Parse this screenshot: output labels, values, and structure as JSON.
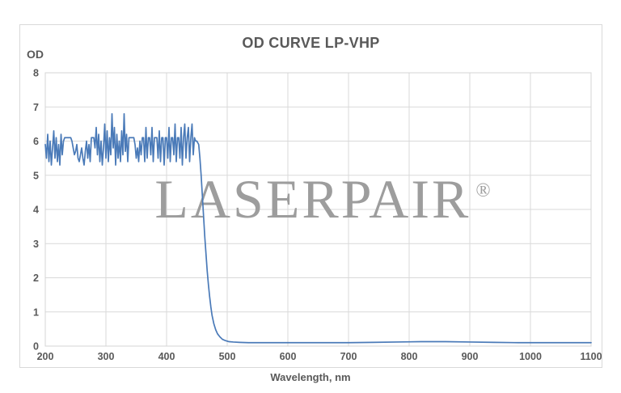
{
  "chart": {
    "title": "OD CURVE LP-VHP",
    "y_axis_title": "OD",
    "x_axis_title": "Wavelength, nm",
    "watermark": {
      "text": "LASERPAIR",
      "mark": "®",
      "color": "#9d9d9d"
    },
    "colors": {
      "line": "#4a7ab8",
      "grid": "#d9d9d9",
      "plot_border": "#d5d5d5",
      "text": "#595959",
      "background": "#ffffff"
    }
  },
  "chart_data": {
    "type": "line",
    "title": "OD CURVE LP-VHP",
    "xlabel": "Wavelength, nm",
    "ylabel": "OD",
    "xlim": [
      200,
      1100
    ],
    "ylim": [
      0,
      8
    ],
    "x_ticks": [
      200,
      300,
      400,
      500,
      600,
      700,
      800,
      900,
      1000,
      1100
    ],
    "y_ticks": [
      0,
      1,
      2,
      3,
      4,
      5,
      6,
      7,
      8
    ],
    "grid": true,
    "legend": false,
    "series": [
      {
        "name": "OD",
        "color": "#4a7ab8",
        "points": [
          [
            200,
            5.9
          ],
          [
            202,
            5.5
          ],
          [
            204,
            6.2
          ],
          [
            206,
            5.4
          ],
          [
            208,
            6.0
          ],
          [
            210,
            5.3
          ],
          [
            212,
            5.8
          ],
          [
            214,
            6.3
          ],
          [
            216,
            5.5
          ],
          [
            218,
            6.1
          ],
          [
            220,
            5.4
          ],
          [
            222,
            5.9
          ],
          [
            224,
            5.3
          ],
          [
            226,
            6.2
          ],
          [
            228,
            5.6
          ],
          [
            230,
            6.0
          ],
          [
            232,
            6.1
          ],
          [
            234,
            6.1
          ],
          [
            236,
            6.1
          ],
          [
            238,
            6.1
          ],
          [
            240,
            6.1
          ],
          [
            242,
            6.1
          ],
          [
            244,
            6.0
          ],
          [
            246,
            5.8
          ],
          [
            248,
            5.6
          ],
          [
            250,
            5.7
          ],
          [
            252,
            5.9
          ],
          [
            254,
            5.5
          ],
          [
            256,
            5.4
          ],
          [
            258,
            5.6
          ],
          [
            260,
            5.8
          ],
          [
            262,
            5.5
          ],
          [
            264,
            5.3
          ],
          [
            266,
            5.7
          ],
          [
            268,
            6.0
          ],
          [
            270,
            5.5
          ],
          [
            272,
            5.9
          ],
          [
            274,
            5.4
          ],
          [
            276,
            6.1
          ],
          [
            278,
            6.1
          ],
          [
            280,
            6.1
          ],
          [
            282,
            5.8
          ],
          [
            284,
            6.4
          ],
          [
            286,
            5.6
          ],
          [
            288,
            6.2
          ],
          [
            290,
            5.4
          ],
          [
            292,
            6.0
          ],
          [
            294,
            5.3
          ],
          [
            296,
            5.8
          ],
          [
            298,
            6.5
          ],
          [
            300,
            5.5
          ],
          [
            302,
            6.3
          ],
          [
            304,
            5.4
          ],
          [
            306,
            6.1
          ],
          [
            308,
            5.6
          ],
          [
            310,
            6.8
          ],
          [
            312,
            5.8
          ],
          [
            314,
            6.4
          ],
          [
            316,
            5.3
          ],
          [
            318,
            6.2
          ],
          [
            320,
            5.5
          ],
          [
            322,
            6.0
          ],
          [
            324,
            5.4
          ],
          [
            326,
            6.3
          ],
          [
            328,
            5.6
          ],
          [
            330,
            6.8
          ],
          [
            332,
            5.7
          ],
          [
            334,
            6.2
          ],
          [
            336,
            5.4
          ],
          [
            338,
            6.1
          ],
          [
            340,
            6.1
          ],
          [
            342,
            6.1
          ],
          [
            344,
            6.1
          ],
          [
            346,
            6.1
          ],
          [
            348,
            5.9
          ],
          [
            350,
            5.5
          ],
          [
            352,
            5.8
          ],
          [
            354,
            5.4
          ],
          [
            356,
            6.0
          ],
          [
            358,
            5.6
          ],
          [
            360,
            6.1
          ],
          [
            362,
            6.1
          ],
          [
            364,
            5.4
          ],
          [
            366,
            6.4
          ],
          [
            368,
            5.5
          ],
          [
            370,
            6.1
          ],
          [
            372,
            6.1
          ],
          [
            374,
            5.6
          ],
          [
            376,
            6.4
          ],
          [
            378,
            5.4
          ],
          [
            380,
            6.1
          ],
          [
            382,
            6.1
          ],
          [
            384,
            6.1
          ],
          [
            386,
            5.5
          ],
          [
            388,
            6.3
          ],
          [
            390,
            5.4
          ],
          [
            392,
            6.1
          ],
          [
            394,
            6.1
          ],
          [
            396,
            5.3
          ],
          [
            398,
            6.1
          ],
          [
            400,
            6.1
          ],
          [
            402,
            5.5
          ],
          [
            404,
            6.4
          ],
          [
            406,
            5.4
          ],
          [
            408,
            6.1
          ],
          [
            410,
            6.1
          ],
          [
            412,
            5.6
          ],
          [
            414,
            6.5
          ],
          [
            416,
            5.4
          ],
          [
            418,
            6.1
          ],
          [
            420,
            6.1
          ],
          [
            422,
            5.5
          ],
          [
            424,
            6.4
          ],
          [
            426,
            5.3
          ],
          [
            428,
            6.1
          ],
          [
            430,
            6.5
          ],
          [
            432,
            5.5
          ],
          [
            434,
            6.1
          ],
          [
            436,
            6.4
          ],
          [
            438,
            5.4
          ],
          [
            440,
            6.1
          ],
          [
            442,
            6.5
          ],
          [
            444,
            5.6
          ],
          [
            446,
            6.1
          ],
          [
            448,
            6.0
          ],
          [
            450,
            6.0
          ],
          [
            453,
            5.9
          ],
          [
            455,
            5.5
          ],
          [
            457,
            5.0
          ],
          [
            459,
            4.4
          ],
          [
            461,
            3.8
          ],
          [
            463,
            3.2
          ],
          [
            465,
            2.7
          ],
          [
            467,
            2.2
          ],
          [
            469,
            1.8
          ],
          [
            471,
            1.45
          ],
          [
            473,
            1.15
          ],
          [
            475,
            0.9
          ],
          [
            478,
            0.65
          ],
          [
            481,
            0.48
          ],
          [
            484,
            0.36
          ],
          [
            488,
            0.27
          ],
          [
            492,
            0.2
          ],
          [
            497,
            0.16
          ],
          [
            503,
            0.13
          ],
          [
            510,
            0.12
          ],
          [
            520,
            0.11
          ],
          [
            535,
            0.1
          ],
          [
            560,
            0.1
          ],
          [
            600,
            0.1
          ],
          [
            650,
            0.1
          ],
          [
            700,
            0.1
          ],
          [
            740,
            0.11
          ],
          [
            780,
            0.12
          ],
          [
            820,
            0.13
          ],
          [
            860,
            0.13
          ],
          [
            900,
            0.12
          ],
          [
            940,
            0.11
          ],
          [
            980,
            0.1
          ],
          [
            1040,
            0.1
          ],
          [
            1100,
            0.1
          ]
        ]
      }
    ]
  }
}
